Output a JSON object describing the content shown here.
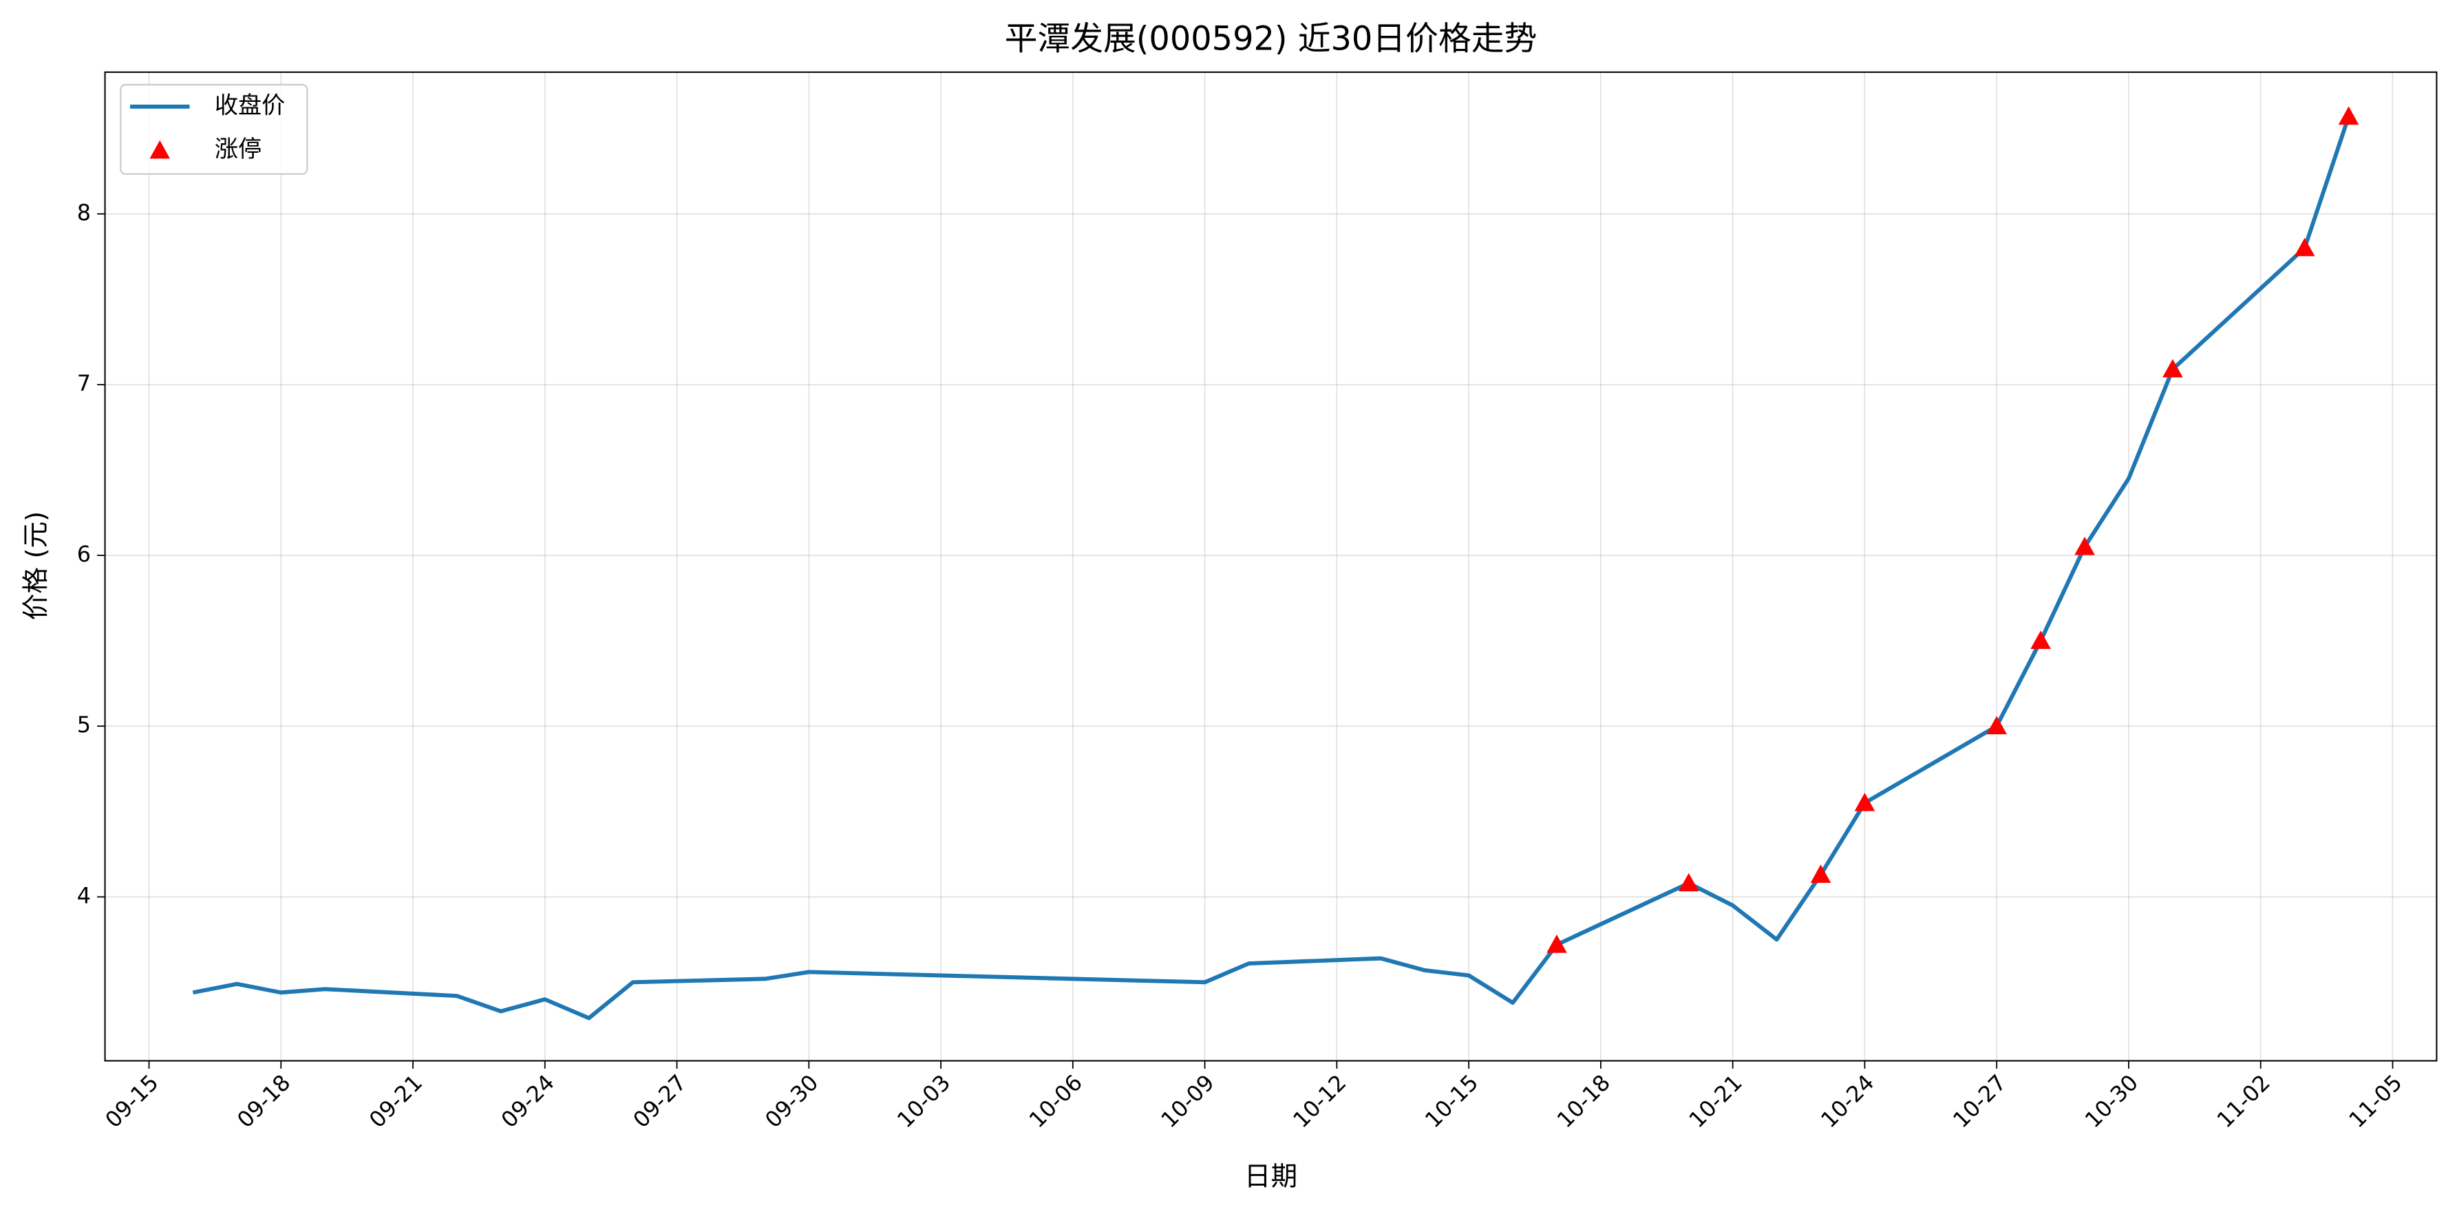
{
  "chart_data": {
    "type": "line",
    "title": "平潭发展(000592) 近30日价格走势",
    "xlabel": "日期",
    "ylabel": "价格 (元)",
    "x": [
      "09-16",
      "09-17",
      "09-18",
      "09-19",
      "09-22",
      "09-23",
      "09-24",
      "09-25",
      "09-26",
      "09-29",
      "09-30",
      "10-09",
      "10-10",
      "10-13",
      "10-14",
      "10-15",
      "10-16",
      "10-17",
      "10-20",
      "10-21",
      "10-22",
      "10-23",
      "10-24",
      "10-27",
      "10-28",
      "10-29",
      "10-30",
      "10-31",
      "11-03",
      "11-04"
    ],
    "series": [
      {
        "name": "收盘价",
        "color": "#1f77b4",
        "mode": "line",
        "values": [
          3.44,
          3.49,
          3.44,
          3.46,
          3.42,
          3.33,
          3.4,
          3.29,
          3.5,
          3.52,
          3.56,
          3.5,
          3.61,
          3.64,
          3.57,
          3.54,
          3.38,
          3.72,
          4.08,
          3.95,
          3.75,
          4.13,
          4.55,
          5.0,
          5.5,
          6.05,
          6.45,
          7.09,
          7.8,
          8.57
        ]
      },
      {
        "name": "涨停",
        "color": "#ff0000",
        "mode": "markers",
        "values": [
          null,
          null,
          null,
          null,
          null,
          null,
          null,
          null,
          null,
          null,
          null,
          null,
          null,
          null,
          null,
          null,
          null,
          3.72,
          4.08,
          null,
          null,
          4.13,
          4.55,
          5.0,
          5.5,
          6.05,
          null,
          7.09,
          7.8,
          8.57
        ]
      }
    ],
    "xlim": [
      "09-14",
      "11-06"
    ],
    "xticks": [
      "09-15",
      "09-18",
      "09-21",
      "09-24",
      "09-27",
      "09-30",
      "10-03",
      "10-06",
      "10-09",
      "10-12",
      "10-15",
      "10-18",
      "10-21",
      "10-24",
      "10-27",
      "10-30",
      "11-02",
      "11-05"
    ],
    "ylim": [
      3.04,
      8.83
    ],
    "yticks": [
      4,
      5,
      6,
      7,
      8
    ],
    "grid": true,
    "legend": "upper-left"
  }
}
